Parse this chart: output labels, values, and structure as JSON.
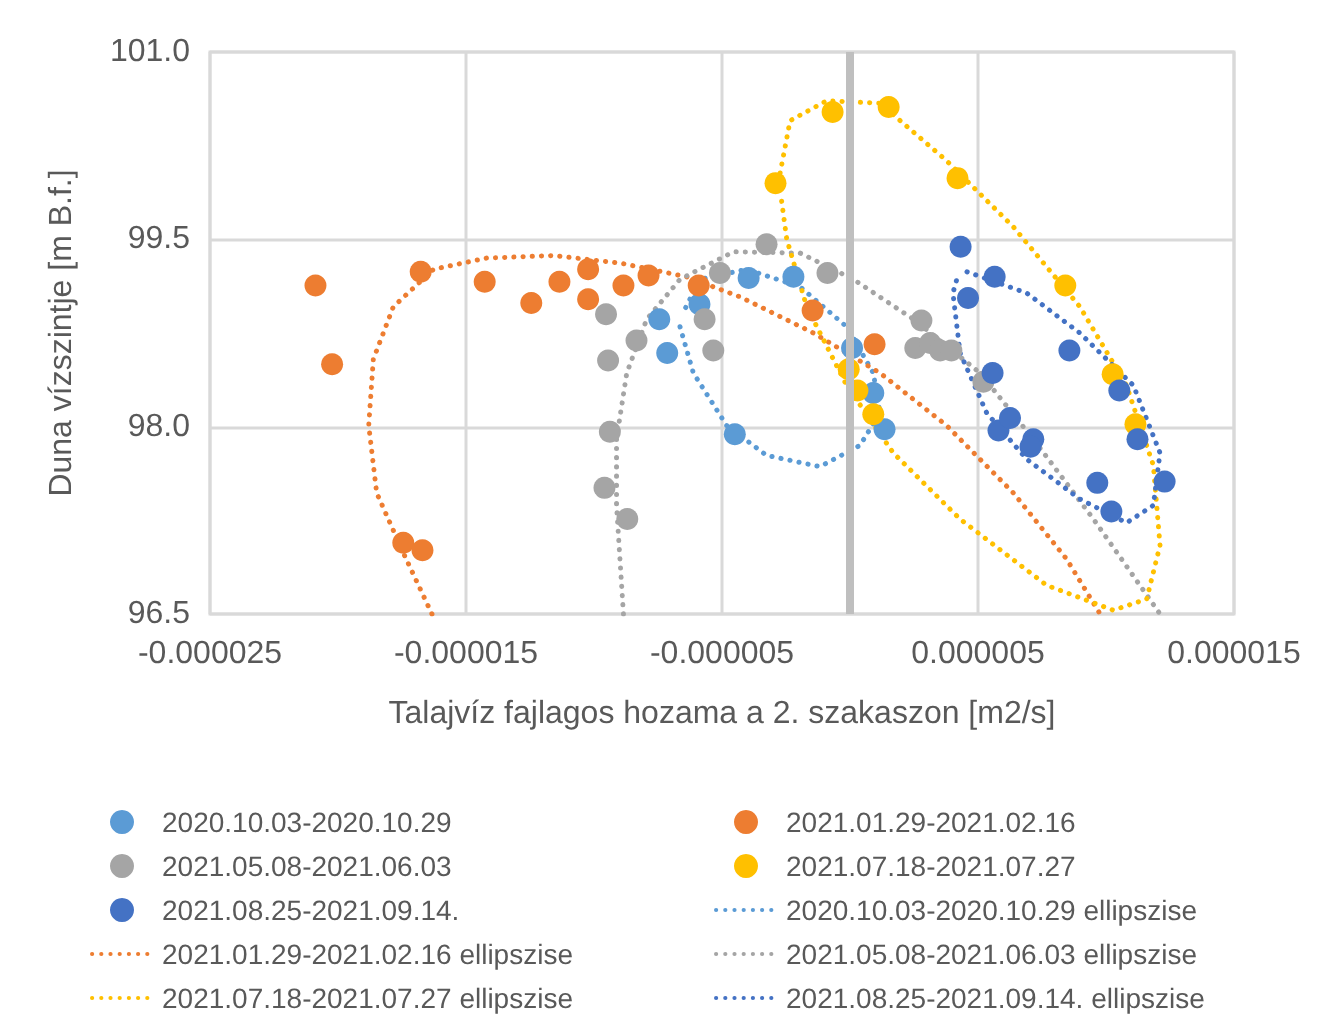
{
  "chart_data": {
    "type": "scatter",
    "xlabel": "Talajvíz fajlagos hozama a 2. szakaszon [m2/s]",
    "ylabel": "Duna vízszintje [m B.f.]",
    "xlim": [
      -2.5e-05,
      1.5e-05
    ],
    "xticks": [
      {
        "value": -2.5e-05,
        "label": "-0.000025"
      },
      {
        "value": -1.5e-05,
        "label": "-0.000015"
      },
      {
        "value": -5e-06,
        "label": "-0.000005"
      },
      {
        "value": 5e-06,
        "label": "0.000005"
      },
      {
        "value": 1.5e-05,
        "label": "0.000015"
      }
    ],
    "ylim": [
      96.5,
      101
    ],
    "yticks": [
      {
        "value": 96.5,
        "label": "96.5"
      },
      {
        "value": 98,
        "label": "98.0"
      },
      {
        "value": 99.5,
        "label": "99.5"
      },
      {
        "value": 101,
        "label": "101.0"
      }
    ],
    "grid": true,
    "legend": "bottom",
    "marker": "circle",
    "ref_lines": [
      {
        "axis": "x",
        "value": 0,
        "label": null,
        "color": "#bfbfbf"
      }
    ],
    "series": [
      {
        "name": "2020.10.03-2020.10.29",
        "color": "#5b9bd5",
        "x": [
          -7.45e-06,
          -7.14e-06,
          -5.88e-06,
          -4.5e-06,
          -3.96e-06,
          -2.21e-06,
          8e-08,
          9.1e-07,
          1.35e-06
        ],
        "values": [
          98.86,
          98.59,
          98.98,
          97.94,
          99.19,
          99.2,
          98.63,
          98.27,
          97.98
        ]
      },
      {
        "name": "2021.01.29-2021.02.16",
        "color": "#ed7d31",
        "x": [
          -2.088e-05,
          -2.023e-05,
          -1.677e-05,
          -1.745e-05,
          -1.67e-05,
          -1.427e-05,
          -1.245e-05,
          -1.135e-05,
          -1.023e-05,
          -1.023e-05,
          -8.85e-06,
          -7.87e-06,
          -5.91e-06,
          -1.46e-06,
          9.6e-07
        ],
        "values": [
          99.13,
          98.5,
          99.24,
          97.07,
          97.01,
          99.16,
          98.99,
          99.16,
          99.26,
          99.02,
          99.13,
          99.21,
          99.13,
          98.93,
          98.66
        ]
      },
      {
        "name": "2021.05.08-2021.06.03",
        "color": "#a5a5a5",
        "x": [
          -9.53e-06,
          -9.45e-06,
          -8.34e-06,
          -9.38e-06,
          -9.59e-06,
          -8.7e-06,
          -5.08e-06,
          -5.68e-06,
          -5.34e-06,
          -3.26e-06,
          -8.8e-07,
          2.79e-06,
          2.55e-06,
          3.13e-06,
          3.52e-06,
          3.96e-06,
          5.21e-06
        ],
        "values": [
          98.9,
          98.53,
          98.69,
          97.96,
          97.51,
          97.26,
          99.23,
          98.86,
          98.61,
          99.46,
          99.23,
          98.85,
          98.63,
          98.67,
          98.61,
          98.61,
          98.36
        ]
      },
      {
        "name": "2021.07.18-2021.07.27",
        "color": "#ffc000",
        "x": [
          -6.8e-07,
          1.51e-06,
          -2.91e-06,
          4.2e-06,
          8.41e-06,
          -5e-08,
          2.9e-07,
          9.1e-07,
          1.026e-05,
          1.115e-05
        ],
        "values": [
          100.52,
          100.56,
          99.95,
          99.99,
          99.13,
          98.46,
          98.29,
          98.1,
          98.42,
          98.02
        ]
      },
      {
        "name": "2021.08.25-2021.09.14.",
        "color": "#4472c4",
        "x": [
          4.32e-06,
          5.65e-06,
          4.61e-06,
          8.57e-06,
          5.57e-06,
          1.052e-05,
          5.8e-06,
          6.25e-06,
          7.16e-06,
          7.05e-06,
          1.123e-05,
          9.66e-06,
          1.229e-05,
          1.021e-05
        ],
        "values": [
          99.44,
          99.2,
          99.03,
          98.61,
          98.43,
          98.29,
          97.97,
          98.07,
          97.9,
          97.84,
          97.9,
          97.55,
          97.56,
          97.32
        ]
      },
      {
        "name": "2020.10.03-2020.10.29 ellipszise",
        "color": "#5b9bd5",
        "type": "line",
        "line_style": "dotted",
        "marker": "none",
        "x": [
          -6.64e-06,
          -6.12e-06,
          -4.82e-06,
          -3.26e-06,
          -1.17e-06,
          3.9e-07,
          1.17e-06,
          9.1e-07,
          -1.3e-07,
          -1.95e-06,
          -4.04e-06,
          -5.86e-06,
          -6.55e-06
        ],
        "values": [
          98.8,
          98.43,
          98.01,
          97.77,
          97.68,
          97.85,
          98.11,
          98.43,
          98.8,
          99.12,
          99.26,
          99.18,
          98.9
        ]
      },
      {
        "name": "2021.01.29-2021.02.16 ellipszise",
        "color": "#ed7d31",
        "type": "line",
        "line_style": "dotted",
        "marker": "none",
        "x": [
          -1.633e-05,
          -1.745e-05,
          -1.849e-05,
          -1.88e-05,
          -1.862e-05,
          -1.784e-05,
          -1.627e-05,
          -1.42e-05,
          -1.159e-05,
          -8.98e-06,
          -6.38e-06,
          -4.3e-06,
          -1.43e-06,
          1.17e-06,
          3.77e-06,
          6.38e-06,
          8.46e-06,
          9.77e-06
        ],
        "values": [
          96.5,
          96.99,
          97.47,
          98.01,
          98.54,
          98.96,
          99.26,
          99.35,
          99.37,
          99.31,
          99.2,
          99.04,
          98.75,
          98.43,
          98.01,
          97.47,
          96.94,
          96.5
        ]
      },
      {
        "name": "2021.05.08-2021.06.03 ellipszise",
        "color": "#a5a5a5",
        "type": "line",
        "line_style": "dotted",
        "marker": "none",
        "x": [
          -8.85e-06,
          -9.12e-06,
          -9.12e-06,
          -8.72e-06,
          -7.94e-06,
          -6.64e-06,
          -4.55e-06,
          -1.95e-06,
          1.3e-07,
          2.48e-06,
          5.08e-06,
          7.16e-06,
          9.51e-06,
          1.211e-05
        ],
        "values": [
          96.5,
          97.37,
          97.9,
          98.43,
          98.86,
          99.18,
          99.4,
          99.39,
          99.18,
          98.86,
          98.43,
          97.9,
          97.26,
          96.5
        ]
      },
      {
        "name": "2021.07.18-2021.07.27 ellipszise",
        "color": "#ffc000",
        "type": "line",
        "line_style": "dotted",
        "marker": "none",
        "x": [
          -2.73e-06,
          -2.34e-06,
          -9.1e-07,
          1.17e-06,
          3.77e-06,
          6.38e-06,
          8.98e-06,
          1.08e-05,
          1.185e-05,
          1.211e-05,
          1.159e-05,
          1.029e-05,
          7.68e-06,
          4.3e-06,
          1.69e-06,
          -1.3e-07,
          -1.69e-06,
          -2.47e-06,
          -2.7e-06
        ],
        "values": [
          100.03,
          100.45,
          100.61,
          100.59,
          100.13,
          99.6,
          98.96,
          98.33,
          97.69,
          97.05,
          96.62,
          96.53,
          96.73,
          97.26,
          97.79,
          98.33,
          98.96,
          99.5,
          99.85
        ]
      },
      {
        "name": "2021.08.25-2021.09.14. ellipszise",
        "color": "#4472c4",
        "type": "line",
        "line_style": "dotted",
        "marker": "none",
        "x": [
          4.57e-06,
          6.9e-06,
          8.98e-06,
          1.107e-05,
          1.211e-05,
          1.185e-05,
          1.08e-05,
          8.98e-06,
          6.9e-06,
          5.34e-06,
          4.3e-06,
          4.02e-06,
          4.2e-06
        ],
        "values": [
          99.24,
          99.07,
          98.75,
          98.33,
          97.79,
          97.37,
          97.23,
          97.42,
          97.74,
          98.11,
          98.59,
          99.07,
          99.2
        ]
      }
    ]
  }
}
